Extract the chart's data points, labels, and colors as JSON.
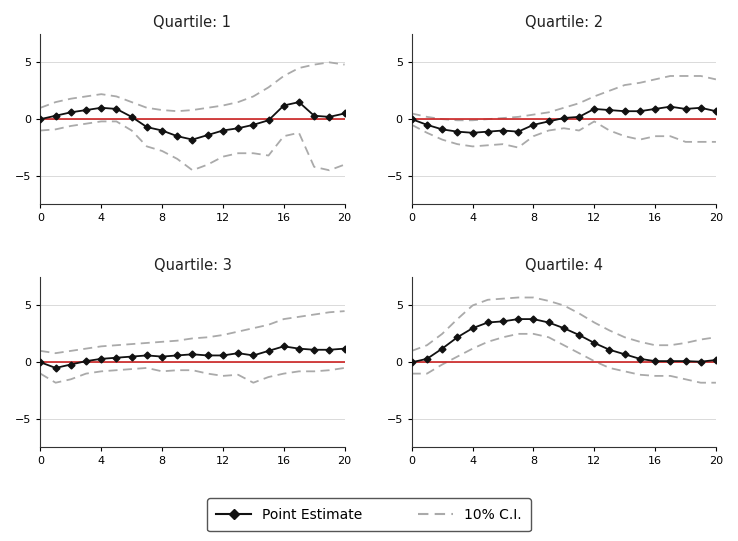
{
  "titles": [
    "Quartile: 1",
    "Quartile: 2",
    "Quartile: 3",
    "Quartile: 4"
  ],
  "x": [
    0,
    1,
    2,
    3,
    4,
    5,
    6,
    7,
    8,
    9,
    10,
    11,
    12,
    13,
    14,
    15,
    16,
    17,
    18,
    19,
    20
  ],
  "point_estimates": [
    [
      0.0,
      0.3,
      0.6,
      0.8,
      1.0,
      0.9,
      0.2,
      -0.7,
      -1.0,
      -1.5,
      -1.8,
      -1.4,
      -1.0,
      -0.8,
      -0.5,
      -0.1,
      1.2,
      1.5,
      0.3,
      0.2,
      0.5
    ],
    [
      0.0,
      -0.5,
      -0.9,
      -1.1,
      -1.2,
      -1.1,
      -1.0,
      -1.1,
      -0.5,
      -0.2,
      0.1,
      0.2,
      0.9,
      0.8,
      0.7,
      0.7,
      0.9,
      1.1,
      0.9,
      1.0,
      0.7
    ],
    [
      0.0,
      -0.5,
      -0.2,
      0.1,
      0.3,
      0.4,
      0.5,
      0.6,
      0.5,
      0.6,
      0.7,
      0.6,
      0.6,
      0.8,
      0.6,
      1.0,
      1.4,
      1.2,
      1.1,
      1.1,
      1.2
    ],
    [
      0.0,
      0.3,
      1.2,
      2.2,
      3.0,
      3.5,
      3.6,
      3.8,
      3.8,
      3.5,
      3.0,
      2.4,
      1.7,
      1.1,
      0.7,
      0.3,
      0.1,
      0.1,
      0.1,
      0.05,
      0.2
    ]
  ],
  "ci_upper": [
    [
      1.0,
      1.5,
      1.8,
      2.0,
      2.2,
      2.0,
      1.5,
      1.0,
      0.8,
      0.7,
      0.8,
      1.0,
      1.2,
      1.5,
      2.0,
      2.8,
      3.8,
      4.5,
      4.8,
      5.0,
      4.8
    ],
    [
      0.5,
      0.2,
      0.0,
      -0.1,
      -0.1,
      0.0,
      0.1,
      0.2,
      0.4,
      0.6,
      1.0,
      1.4,
      2.0,
      2.5,
      3.0,
      3.2,
      3.5,
      3.8,
      3.8,
      3.8,
      3.5
    ],
    [
      1.0,
      0.8,
      1.0,
      1.2,
      1.4,
      1.5,
      1.6,
      1.7,
      1.8,
      1.9,
      2.1,
      2.2,
      2.4,
      2.7,
      3.0,
      3.3,
      3.8,
      4.0,
      4.2,
      4.4,
      4.5
    ],
    [
      1.0,
      1.5,
      2.5,
      3.8,
      5.0,
      5.5,
      5.6,
      5.7,
      5.7,
      5.4,
      5.0,
      4.3,
      3.5,
      2.8,
      2.2,
      1.8,
      1.5,
      1.5,
      1.7,
      2.0,
      2.2
    ]
  ],
  "ci_lower": [
    [
      -1.0,
      -0.9,
      -0.6,
      -0.4,
      -0.2,
      -0.2,
      -1.0,
      -2.4,
      -2.8,
      -3.5,
      -4.5,
      -4.0,
      -3.3,
      -3.0,
      -3.0,
      -3.2,
      -1.5,
      -1.2,
      -4.2,
      -4.5,
      -4.0
    ],
    [
      -0.5,
      -1.2,
      -1.8,
      -2.2,
      -2.4,
      -2.3,
      -2.2,
      -2.5,
      -1.5,
      -1.0,
      -0.8,
      -1.0,
      -0.2,
      -1.0,
      -1.5,
      -1.8,
      -1.5,
      -1.5,
      -2.0,
      -2.0,
      -2.0
    ],
    [
      -1.0,
      -1.8,
      -1.5,
      -1.0,
      -0.8,
      -0.7,
      -0.6,
      -0.5,
      -0.8,
      -0.7,
      -0.7,
      -1.0,
      -1.2,
      -1.1,
      -1.8,
      -1.3,
      -1.0,
      -0.8,
      -0.8,
      -0.7,
      -0.5
    ],
    [
      -1.0,
      -1.0,
      -0.2,
      0.5,
      1.2,
      1.8,
      2.2,
      2.5,
      2.5,
      2.2,
      1.5,
      0.8,
      0.1,
      -0.5,
      -0.8,
      -1.1,
      -1.2,
      -1.2,
      -1.5,
      -1.8,
      -1.8
    ]
  ],
  "ylim": [
    -7.5,
    7.5
  ],
  "yticks": [
    -5,
    0,
    5
  ],
  "xticks": [
    0,
    4,
    8,
    12,
    16,
    20
  ],
  "xlim": [
    0,
    20
  ],
  "point_color": "#111111",
  "ci_color": "#aaaaaa",
  "zero_line_color": "#cc2222",
  "background_color": "#ffffff",
  "grid_color": "#cccccc",
  "legend_point_label": "Point Estimate",
  "legend_ci_label": "10% C.I."
}
